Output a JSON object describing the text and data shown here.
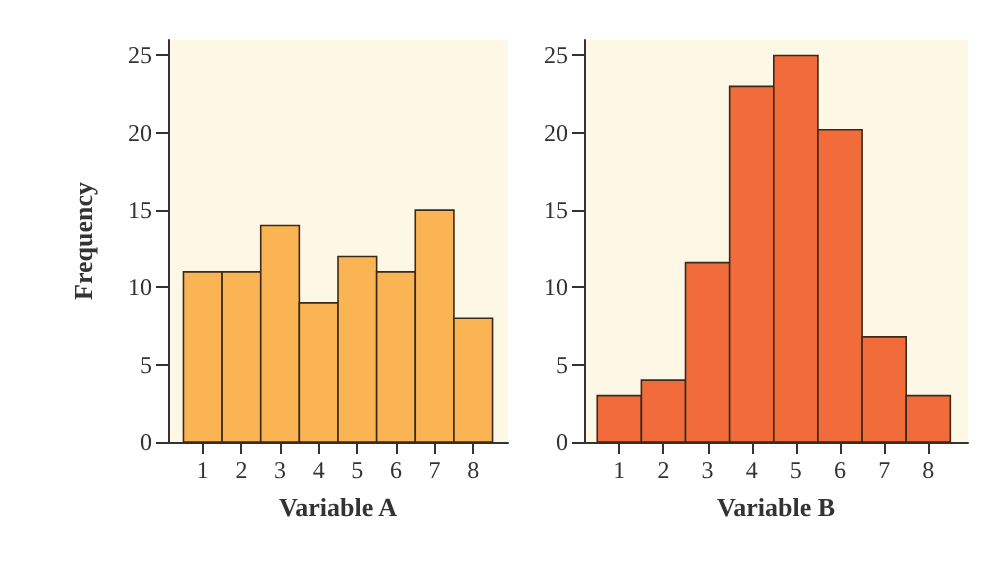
{
  "chart_data": [
    {
      "type": "histogram",
      "xlabel": "Variable A",
      "ylabel": "Frequency",
      "bins": [
        0.5,
        1.5,
        2.5,
        3.5,
        4.5,
        5.5,
        6.5,
        7.5,
        8.5
      ],
      "values": [
        11,
        11,
        14,
        9,
        12,
        11,
        15,
        8
      ],
      "color": "#fbb454",
      "xlim": [
        0.1,
        8.9
      ],
      "xticks": [
        1,
        2,
        3,
        4,
        5,
        6,
        7,
        8
      ],
      "ylim": [
        0,
        26
      ],
      "yticks": [
        0,
        5,
        10,
        15,
        20,
        25
      ]
    },
    {
      "type": "histogram",
      "xlabel": "Variable B",
      "bins": [
        0.5,
        1.5,
        2.5,
        3.5,
        4.5,
        5.5,
        6.5,
        7.5,
        8.5
      ],
      "values": [
        3,
        4,
        11.6,
        23,
        25,
        20.2,
        6.8,
        3
      ],
      "color": "#f26b3a",
      "xlim": [
        0.2,
        8.9
      ],
      "xticks": [
        1,
        2,
        3,
        4,
        5,
        6,
        7,
        8
      ],
      "ylim": [
        0,
        26
      ],
      "yticks": [
        0,
        5,
        10,
        15,
        20,
        25
      ]
    }
  ]
}
